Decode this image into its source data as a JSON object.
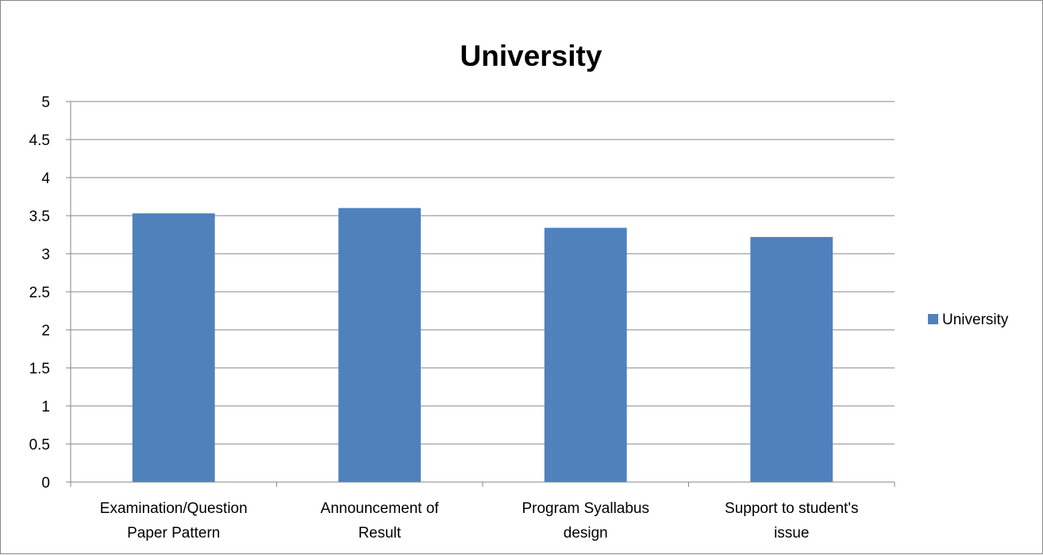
{
  "chart_data": {
    "type": "bar",
    "title": "University",
    "xlabel": "",
    "ylabel": "",
    "categories": [
      [
        "Examination/Question",
        "Paper Pattern"
      ],
      [
        "Announcement of",
        "Result"
      ],
      [
        "Program Syallabus",
        "design"
      ],
      [
        "Support to student's",
        "issue"
      ]
    ],
    "series": [
      {
        "name": "University",
        "values": [
          3.53,
          3.6,
          3.34,
          3.22
        ],
        "color": "#4F81BD"
      }
    ],
    "ylim": [
      0,
      5
    ],
    "yticks": [
      "0",
      "0.5",
      "1",
      "1.5",
      "2",
      "2.5",
      "3",
      "3.5",
      "4",
      "4.5",
      "5"
    ],
    "grid": true,
    "legend_position": "right"
  }
}
